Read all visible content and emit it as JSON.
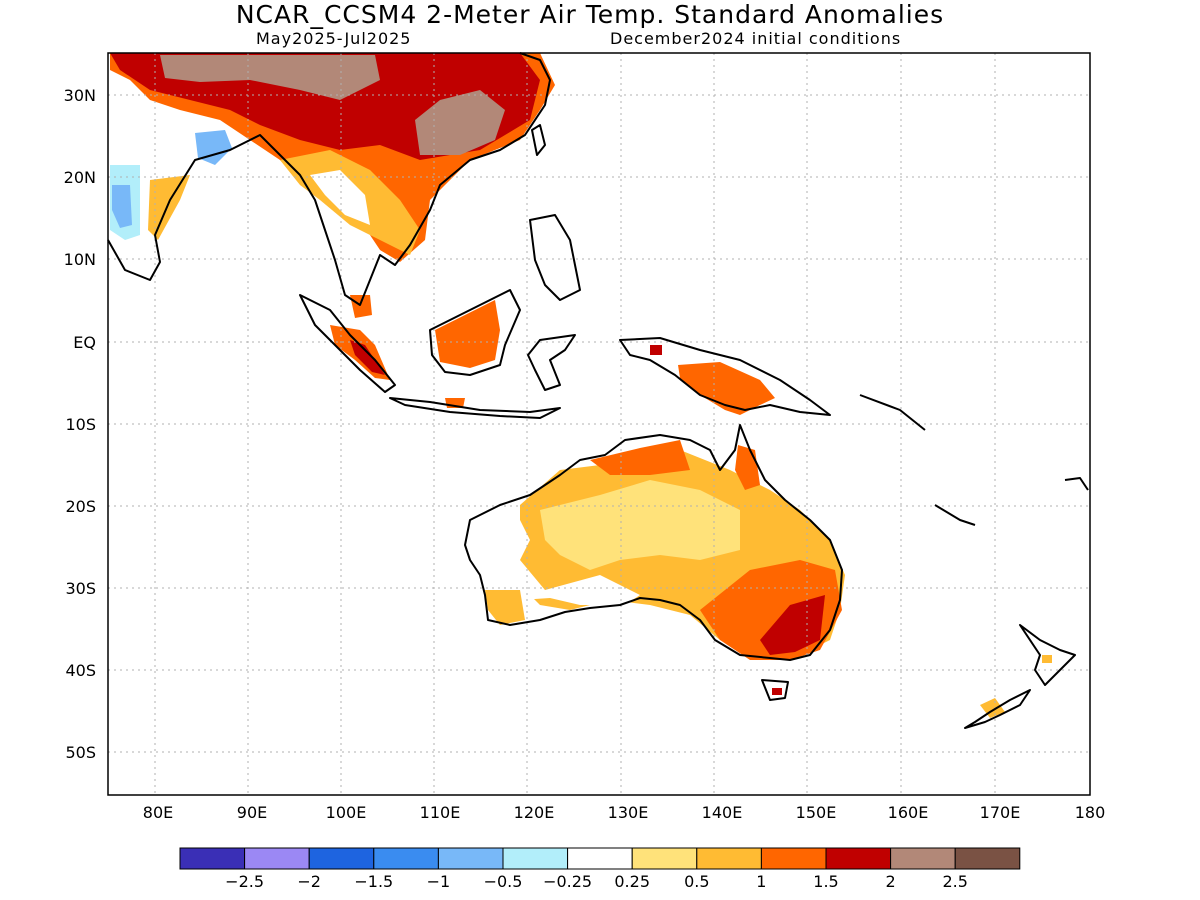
{
  "title": "NCAR_CCSM4 2-Meter Air Temp. Standard Anomalies",
  "subtitle_left": "May2025-Jul2025",
  "subtitle_right": "December2024 initial conditions",
  "lat_labels": [
    "30N",
    "20N",
    "10N",
    "EQ",
    "10S",
    "20S",
    "30S",
    "40S",
    "50S"
  ],
  "lon_labels": [
    "80E",
    "90E",
    "100E",
    "110E",
    "120E",
    "130E",
    "140E",
    "150E",
    "160E",
    "170E",
    "180"
  ],
  "colorbar": {
    "colors": [
      "#3a2fb6",
      "#9b88f4",
      "#1e64e0",
      "#3a8cf0",
      "#78b8f8",
      "#b2eefa",
      "#ffffff",
      "#ffe27a",
      "#ffbb33",
      "#ff6600",
      "#c00000",
      "#b28878",
      "#7a5244"
    ],
    "labels": [
      "-2.5",
      "-2",
      "-1.5",
      "-1",
      "-0.5",
      "-0.25",
      "0.25",
      "0.5",
      "1",
      "1.5",
      "2",
      "2.5"
    ]
  },
  "legend_colors": {
    "land_outline": "#000000",
    "grid": "#b0b0b0"
  }
}
